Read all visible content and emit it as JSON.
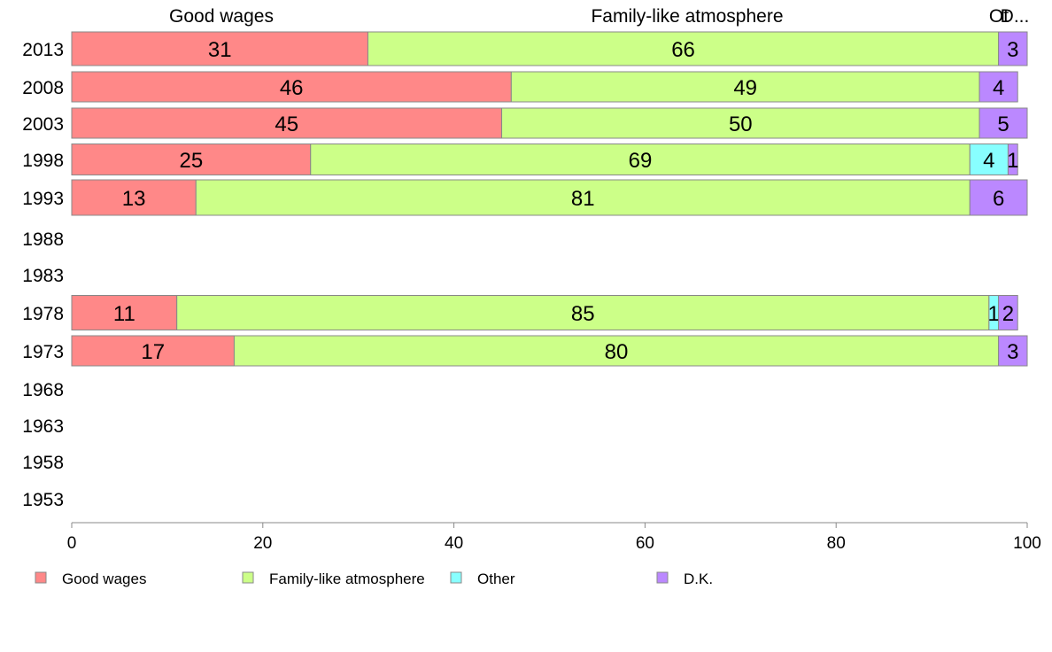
{
  "chart_data": {
    "type": "bar",
    "orientation": "horizontal",
    "stacked": true,
    "title": "",
    "xlabel": "",
    "ylabel": "",
    "xlim": [
      0,
      100
    ],
    "x_ticks": [
      0,
      20,
      40,
      60,
      80,
      100
    ],
    "grid": false,
    "legend_position": "bottom",
    "categories": [
      "2013",
      "2008",
      "2003",
      "1998",
      "1993",
      "1988",
      "1983",
      "1978",
      "1973",
      "1968",
      "1963",
      "1958",
      "1953"
    ],
    "series": [
      {
        "name": "Good wages",
        "color": "#ff8888",
        "values": [
          31,
          46,
          45,
          25,
          13,
          null,
          null,
          11,
          17,
          null,
          null,
          null,
          null
        ]
      },
      {
        "name": "Family-like atmosphere",
        "color": "#ccff88",
        "values": [
          66,
          49,
          50,
          69,
          81,
          null,
          null,
          85,
          80,
          null,
          null,
          null,
          null
        ]
      },
      {
        "name": "Other",
        "color": "#88ffff",
        "values": [
          0,
          0,
          0,
          4,
          0,
          null,
          null,
          1,
          0,
          null,
          null,
          null,
          null
        ]
      },
      {
        "name": "D.K.",
        "color": "#bb88ff",
        "values": [
          3,
          4,
          5,
          1,
          6,
          null,
          null,
          2,
          3,
          null,
          null,
          null,
          null
        ]
      }
    ],
    "top_labels": [
      "Good wages",
      "Family-like atmosphere",
      "Ot",
      "D..."
    ]
  }
}
